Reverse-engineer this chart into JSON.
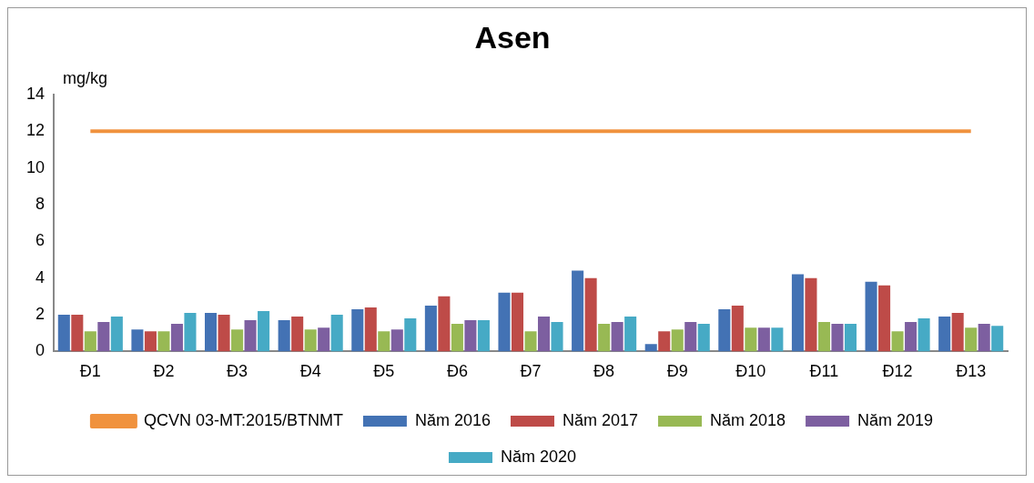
{
  "chart_data": {
    "type": "bar",
    "title": "Asen",
    "ylabel": "mg/kg",
    "categories": [
      "Đ1",
      "Đ2",
      "Đ3",
      "Đ4",
      "Đ5",
      "Đ6",
      "Đ7",
      "Đ8",
      "Đ9",
      "Đ10",
      "Đ11",
      "Đ12",
      "Đ13"
    ],
    "series": [
      {
        "name": "Năm 2016",
        "color": "#4372b4",
        "values": [
          2.0,
          1.2,
          2.1,
          1.7,
          2.3,
          2.5,
          3.2,
          4.4,
          0.4,
          2.3,
          4.2,
          3.8,
          1.9
        ]
      },
      {
        "name": "Năm 2017",
        "color": "#be4b48",
        "values": [
          2.0,
          1.1,
          2.0,
          1.9,
          2.4,
          3.0,
          3.2,
          4.0,
          1.1,
          2.5,
          4.0,
          3.6,
          2.1
        ]
      },
      {
        "name": "Năm 2018",
        "color": "#98b954",
        "values": [
          1.1,
          1.1,
          1.2,
          1.2,
          1.1,
          1.5,
          1.1,
          1.5,
          1.2,
          1.3,
          1.6,
          1.1,
          1.3
        ]
      },
      {
        "name": "Năm 2019",
        "color": "#7d5fa0",
        "values": [
          1.6,
          1.5,
          1.7,
          1.3,
          1.2,
          1.7,
          1.9,
          1.6,
          1.6,
          1.3,
          1.5,
          1.6,
          1.5
        ]
      },
      {
        "name": "Năm 2020",
        "color": "#46aac5",
        "values": [
          1.9,
          2.1,
          2.2,
          2.0,
          1.8,
          1.7,
          1.6,
          1.9,
          1.5,
          1.3,
          1.5,
          1.8,
          1.4
        ]
      },
      {
        "name": "QCVN 03-MT:2015/BTNMT",
        "type": "line",
        "color": "#f0923e",
        "values": [
          12,
          12,
          12,
          12,
          12,
          12,
          12,
          12,
          12,
          12,
          12,
          12,
          12
        ]
      }
    ],
    "ylim": [
      0,
      14
    ],
    "yticks": [
      0,
      2,
      4,
      6,
      8,
      10,
      12,
      14
    ],
    "grid": false,
    "legend": "bottom"
  }
}
